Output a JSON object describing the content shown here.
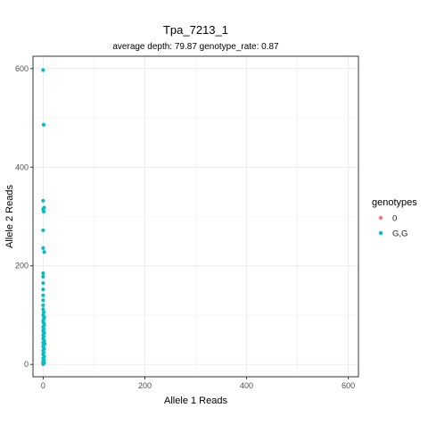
{
  "chart_data": {
    "type": "scatter",
    "title": "Tpa_7213_1",
    "subtitle": "average depth:  79.87  genotype_rate:  0.87",
    "xlabel": "Allele 1 Reads",
    "ylabel": "Allele 2 Reads",
    "xlim": [
      -20,
      620
    ],
    "ylim": [
      -25,
      625
    ],
    "xticks": [
      0,
      200,
      400,
      600
    ],
    "yticks": [
      0,
      200,
      400,
      600
    ],
    "grid": true,
    "legend": {
      "title": "genotypes",
      "placement": "right",
      "entries": [
        {
          "label": "0",
          "color": "#F8766D"
        },
        {
          "label": "G,G",
          "color": "#00BFC4"
        }
      ]
    },
    "series": [
      {
        "name": "0",
        "color": "#F8766D",
        "points": [
          [
            0,
            0
          ],
          [
            0,
            3
          ],
          [
            0,
            6
          ]
        ]
      },
      {
        "name": "G,G",
        "color": "#00BFC4",
        "points": [
          [
            0,
            597
          ],
          [
            1,
            486
          ],
          [
            0,
            332
          ],
          [
            2,
            318
          ],
          [
            0,
            315
          ],
          [
            1,
            310
          ],
          [
            0,
            272
          ],
          [
            0,
            236
          ],
          [
            2,
            228
          ],
          [
            0,
            185
          ],
          [
            0,
            178
          ],
          [
            0,
            165
          ],
          [
            0,
            152
          ],
          [
            0,
            140
          ],
          [
            0,
            130
          ],
          [
            0,
            120
          ],
          [
            0,
            112
          ],
          [
            1,
            106
          ],
          [
            0,
            100
          ],
          [
            2,
            96
          ],
          [
            1,
            92
          ],
          [
            0,
            88
          ],
          [
            1,
            84
          ],
          [
            2,
            80
          ],
          [
            0,
            76
          ],
          [
            1,
            72
          ],
          [
            0,
            68
          ],
          [
            2,
            64
          ],
          [
            0,
            60
          ],
          [
            1,
            56
          ],
          [
            0,
            52
          ],
          [
            2,
            48
          ],
          [
            0,
            44
          ],
          [
            1,
            40
          ],
          [
            0,
            36
          ],
          [
            2,
            32
          ],
          [
            0,
            28
          ],
          [
            1,
            24
          ],
          [
            0,
            20
          ],
          [
            2,
            16
          ],
          [
            0,
            12
          ],
          [
            1,
            8
          ],
          [
            0,
            5
          ],
          [
            2,
            3
          ],
          [
            0,
            2
          ],
          [
            1,
            10
          ],
          [
            3,
            42
          ],
          [
            1,
            66
          ]
        ]
      }
    ]
  }
}
